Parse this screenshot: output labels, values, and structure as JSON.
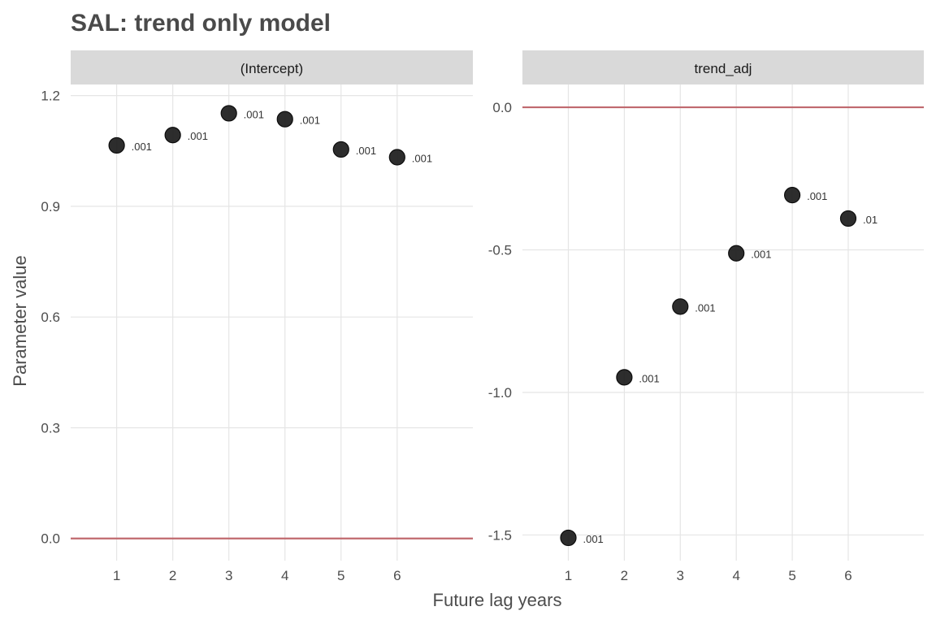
{
  "chart_data": {
    "type": "scatter",
    "title": "SAL: trend only model",
    "xlabel": "Future lag years",
    "ylabel": "Parameter value",
    "grid": true,
    "reference_line_y": 0,
    "reference_line_color": "#c0696e",
    "point_color": "#222222",
    "facets": [
      {
        "strip": "(Intercept)",
        "x": [
          1,
          2,
          3,
          4,
          5,
          6
        ],
        "y": [
          1.065,
          1.093,
          1.152,
          1.136,
          1.054,
          1.033
        ],
        "labels": [
          ".001",
          ".001",
          ".001",
          ".001",
          ".001",
          ".001"
        ],
        "yticks": [
          0.0,
          0.3,
          0.6,
          0.9,
          1.2
        ],
        "ytick_labels": [
          "0.0",
          "0.3",
          "0.6",
          "0.9",
          "1.2"
        ],
        "ylim": [
          -0.06,
          1.23
        ],
        "xticks": [
          1,
          2,
          3,
          4,
          5,
          6
        ],
        "xlim": [
          0.18,
          7.35
        ]
      },
      {
        "strip": "trend_adj",
        "x": [
          1,
          2,
          3,
          4,
          5,
          6
        ],
        "y": [
          -1.51,
          -0.947,
          -0.699,
          -0.512,
          -0.308,
          -0.39
        ],
        "labels": [
          ".001",
          ".001",
          ".001",
          ".001",
          ".001",
          ".01"
        ],
        "yticks": [
          0.0,
          -0.5,
          -1.0,
          -1.5
        ],
        "ytick_labels": [
          "0.0",
          "-0.5",
          "-1.0",
          "-1.5"
        ],
        "ylim": [
          -1.59,
          0.08
        ],
        "xticks": [
          1,
          2,
          3,
          4,
          5,
          6
        ],
        "xlim": [
          0.18,
          7.35
        ]
      }
    ]
  }
}
